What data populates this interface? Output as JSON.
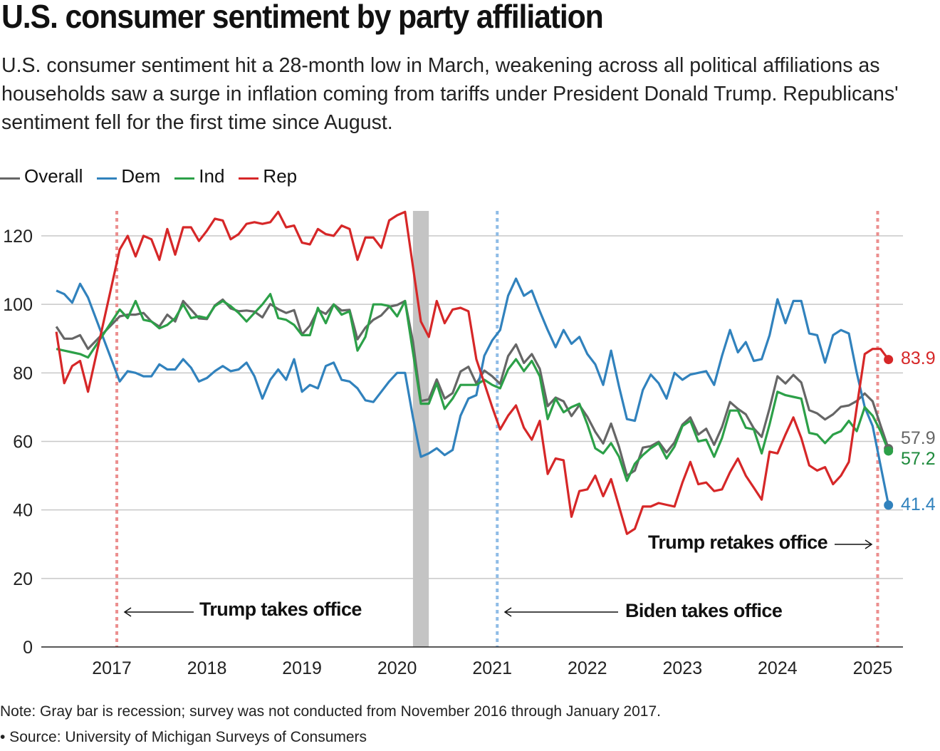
{
  "title": "U.S. consumer sentiment by party affiliation",
  "subtitle": "U.S. consumer sentiment hit a 28-month low in March, weakening across all political affiliations as households saw a surge in inflation coming from tariffs under President Donald Trump. Republicans' sentiment fell for the first time since August.",
  "footer": {
    "note": "Note: Gray bar is recession; survey was not conducted from November 2016 through January 2017.",
    "source": "• Source: University of Michigan Surveys of Consumers"
  },
  "chart_data": {
    "type": "line",
    "title": "U.S. consumer sentiment by party affiliation",
    "xlabel": "",
    "ylabel": "",
    "ylim": [
      0,
      120
    ],
    "yticks": [
      "0",
      "20",
      "40",
      "60",
      "80",
      "100",
      "120"
    ],
    "xticks": [
      "2017",
      "2018",
      "2019",
      "2020",
      "2021",
      "2022",
      "2023",
      "2024",
      "2025"
    ],
    "grid": true,
    "legend_placement": "top-left",
    "x": [
      "2016-06",
      "2016-07",
      "2016-08",
      "2016-09",
      "2016-10",
      "2017-02",
      "2017-03",
      "2017-04",
      "2017-05",
      "2017-06",
      "2017-07",
      "2017-08",
      "2017-09",
      "2017-10",
      "2017-11",
      "2017-12",
      "2018-01",
      "2018-02",
      "2018-03",
      "2018-04",
      "2018-05",
      "2018-06",
      "2018-07",
      "2018-08",
      "2018-09",
      "2018-10",
      "2018-11",
      "2018-12",
      "2019-01",
      "2019-02",
      "2019-03",
      "2019-04",
      "2019-05",
      "2019-06",
      "2019-07",
      "2019-08",
      "2019-09",
      "2019-10",
      "2019-11",
      "2019-12",
      "2020-01",
      "2020-02",
      "2020-03",
      "2020-04",
      "2020-05",
      "2020-06",
      "2020-07",
      "2020-08",
      "2020-09",
      "2020-10",
      "2020-11",
      "2020-12",
      "2021-01",
      "2021-02",
      "2021-03",
      "2021-04",
      "2021-05",
      "2021-06",
      "2021-07",
      "2021-08",
      "2021-09",
      "2021-10",
      "2021-11",
      "2021-12",
      "2022-01",
      "2022-02",
      "2022-03",
      "2022-04",
      "2022-05",
      "2022-06",
      "2022-07",
      "2022-08",
      "2022-09",
      "2022-10",
      "2022-11",
      "2022-12",
      "2023-01",
      "2023-02",
      "2023-03",
      "2023-04",
      "2023-05",
      "2023-06",
      "2023-07",
      "2023-08",
      "2023-09",
      "2023-10",
      "2023-11",
      "2023-12",
      "2024-01",
      "2024-02",
      "2024-03",
      "2024-04",
      "2024-05",
      "2024-06",
      "2024-07",
      "2024-08",
      "2024-09",
      "2024-10",
      "2024-11",
      "2024-12",
      "2025-01",
      "2025-02",
      "2025-03"
    ],
    "series": [
      {
        "name": "Overall",
        "color": "#666666",
        "end_label": "57.9",
        "values": [
          93.5,
          90,
          90,
          91,
          87,
          96.5,
          97,
          97,
          97.5,
          95,
          93.5,
          97,
          95,
          101,
          98.5,
          95.9,
          95.7,
          99.7,
          101.4,
          98.8,
          98,
          98.2,
          97.9,
          96.2,
          100.1,
          98.6,
          97.5,
          98.3,
          91.2,
          93.8,
          98.4,
          97.2,
          100,
          98.2,
          98.4,
          89.8,
          93.2,
          95.5,
          96.8,
          99.3,
          99.8,
          101,
          89.1,
          71.8,
          72.3,
          78.1,
          72.5,
          74.1,
          80.4,
          81.8,
          76.9,
          80.7,
          79,
          76.8,
          84.9,
          88.3,
          82.9,
          85.5,
          81.2,
          70.3,
          72.8,
          71.7,
          67.4,
          70.6,
          67.2,
          62.8,
          59.4,
          65.2,
          58.4,
          50,
          51.5,
          58.2,
          58.6,
          59.9,
          56.8,
          59.7,
          64.9,
          67,
          62,
          63.7,
          59,
          64.2,
          71.5,
          69.5,
          67.9,
          63.8,
          61.3,
          69.7,
          79,
          76.9,
          79.4,
          77.2,
          69.1,
          68.2,
          66.4,
          67.9,
          70.1,
          70.5,
          71.8,
          74,
          71.7,
          64.7,
          57.9
        ]
      },
      {
        "name": "Dem",
        "color": "#3182bd",
        "end_label": "41.4",
        "values": [
          104,
          103,
          100.5,
          106,
          102,
          77.5,
          80.5,
          80,
          79,
          79,
          82.5,
          81,
          81,
          84,
          81.5,
          77.5,
          78.5,
          80.5,
          82,
          80.5,
          81,
          83,
          79,
          72.5,
          78,
          81,
          78,
          84,
          74.5,
          76.5,
          75.5,
          82,
          83,
          78,
          77.5,
          75.5,
          72,
          71.5,
          74.5,
          77.5,
          80,
          80,
          67,
          55.5,
          56.5,
          58,
          56,
          57.5,
          67.5,
          72.5,
          73.5,
          85,
          89.5,
          92.5,
          102.5,
          107.5,
          102.5,
          104,
          98,
          92.5,
          87.5,
          92.5,
          88.5,
          90.5,
          85.5,
          82.5,
          76.5,
          86.5,
          76,
          66.5,
          66,
          75,
          79.5,
          77,
          72.5,
          80,
          78,
          79.5,
          80,
          80.5,
          76.5,
          85,
          92.5,
          86,
          89,
          83.5,
          84,
          91,
          101.5,
          94.5,
          101,
          101,
          91.5,
          91,
          83,
          91,
          92.5,
          91.5,
          80,
          70,
          64.5,
          53,
          41.4
        ]
      },
      {
        "name": "Ind",
        "color": "#2ca048",
        "end_label": "57.2",
        "values": [
          87,
          86.5,
          86,
          85.5,
          84.5,
          98.5,
          96,
          101,
          95.5,
          95,
          93,
          94,
          96,
          100,
          96,
          96.5,
          96,
          99.5,
          101,
          99.5,
          97.5,
          95,
          97.5,
          100,
          103,
          96,
          95.5,
          94,
          91,
          91,
          99,
          94.5,
          100,
          97,
          98,
          86.5,
          90.5,
          100,
          100,
          99.5,
          96.5,
          101,
          86,
          71,
          71,
          77,
          69.5,
          72.5,
          76.5,
          76.5,
          76.5,
          78,
          76.5,
          75.5,
          81,
          84,
          80.5,
          83.5,
          79,
          66.5,
          72.5,
          68.5,
          70,
          71,
          65,
          58,
          56.5,
          59.5,
          55.5,
          48.5,
          53.5,
          56,
          58,
          59.5,
          55,
          58.5,
          64.5,
          66,
          60,
          60.5,
          55.5,
          61,
          69,
          69,
          64,
          63.5,
          56.5,
          65,
          74.5,
          73.5,
          73,
          72.5,
          62.5,
          62,
          59.5,
          62,
          63,
          66,
          63,
          70,
          67.5,
          63,
          57.2
        ]
      },
      {
        "name": "Rep",
        "color": "#d62728",
        "end_label": "83.9",
        "values": [
          92,
          77,
          82,
          83.5,
          74.5,
          116,
          120,
          114,
          120,
          119,
          113,
          122,
          114.5,
          122.5,
          122.5,
          118.5,
          121.5,
          125,
          124.5,
          119,
          120.5,
          123.5,
          124,
          123.5,
          124,
          127,
          122.5,
          123,
          118,
          117.5,
          122,
          120.5,
          120,
          123,
          122,
          113,
          119.5,
          119.5,
          116.5,
          124.5,
          126,
          127,
          111,
          95,
          90.5,
          101,
          94.5,
          98.5,
          99,
          98,
          84,
          77,
          70,
          63.5,
          67.5,
          70.5,
          64,
          60.5,
          66,
          50.5,
          55,
          54.5,
          38,
          45.5,
          46,
          50,
          44,
          49,
          41,
          33,
          34.5,
          41,
          41,
          42,
          41.5,
          41,
          48,
          54,
          47.5,
          48,
          45.5,
          46,
          51,
          55,
          50,
          46.5,
          43,
          57,
          56.5,
          62,
          67,
          61,
          53,
          51.5,
          52.5,
          47.5,
          50,
          54,
          70,
          85.5,
          87,
          87,
          83.9
        ]
      }
    ],
    "recession": [
      "2020-03",
      "2020-04"
    ],
    "events": [
      {
        "date": "2017-01-20",
        "label": "Trump takes office",
        "color": "#ec8f8f"
      },
      {
        "date": "2021-01-20",
        "label": "Biden takes office",
        "color": "#8fbce6"
      },
      {
        "date": "2025-01-20",
        "label": "Trump retakes office",
        "color": "#ec8f8f"
      }
    ],
    "recession_color": "#c4c4c4",
    "grid_color": "#c8c8c8"
  }
}
